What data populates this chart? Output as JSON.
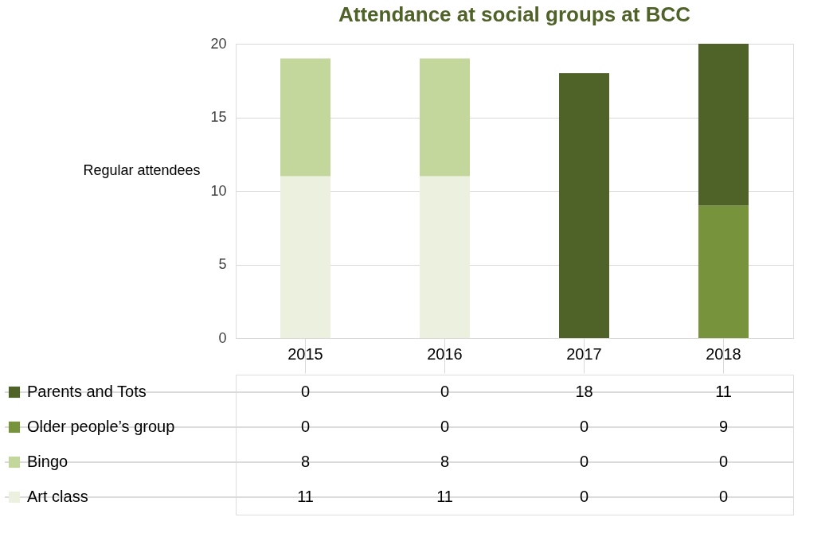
{
  "chart_data": {
    "type": "bar",
    "title": "Attendance at social groups at BCC",
    "ylabel": "Regular attendees",
    "categories": [
      "2015",
      "2016",
      "2017",
      "2018"
    ],
    "series": [
      {
        "name": "Art class",
        "color": "#ebf1de",
        "values": [
          11,
          11,
          0,
          0
        ]
      },
      {
        "name": "Bingo",
        "color": "#c3d69b",
        "values": [
          8,
          8,
          0,
          0
        ]
      },
      {
        "name": "Older people’s group",
        "color": "#77933c",
        "values": [
          0,
          0,
          0,
          9
        ]
      },
      {
        "name": "Parents and Tots",
        "color": "#4f6228",
        "values": [
          0,
          0,
          18,
          11
        ]
      }
    ],
    "stacked": true,
    "ylim": [
      0,
      20
    ],
    "yticks": [
      0,
      5,
      10,
      15,
      20
    ],
    "grid": "y",
    "legend": "bottom",
    "data_labels": true
  }
}
